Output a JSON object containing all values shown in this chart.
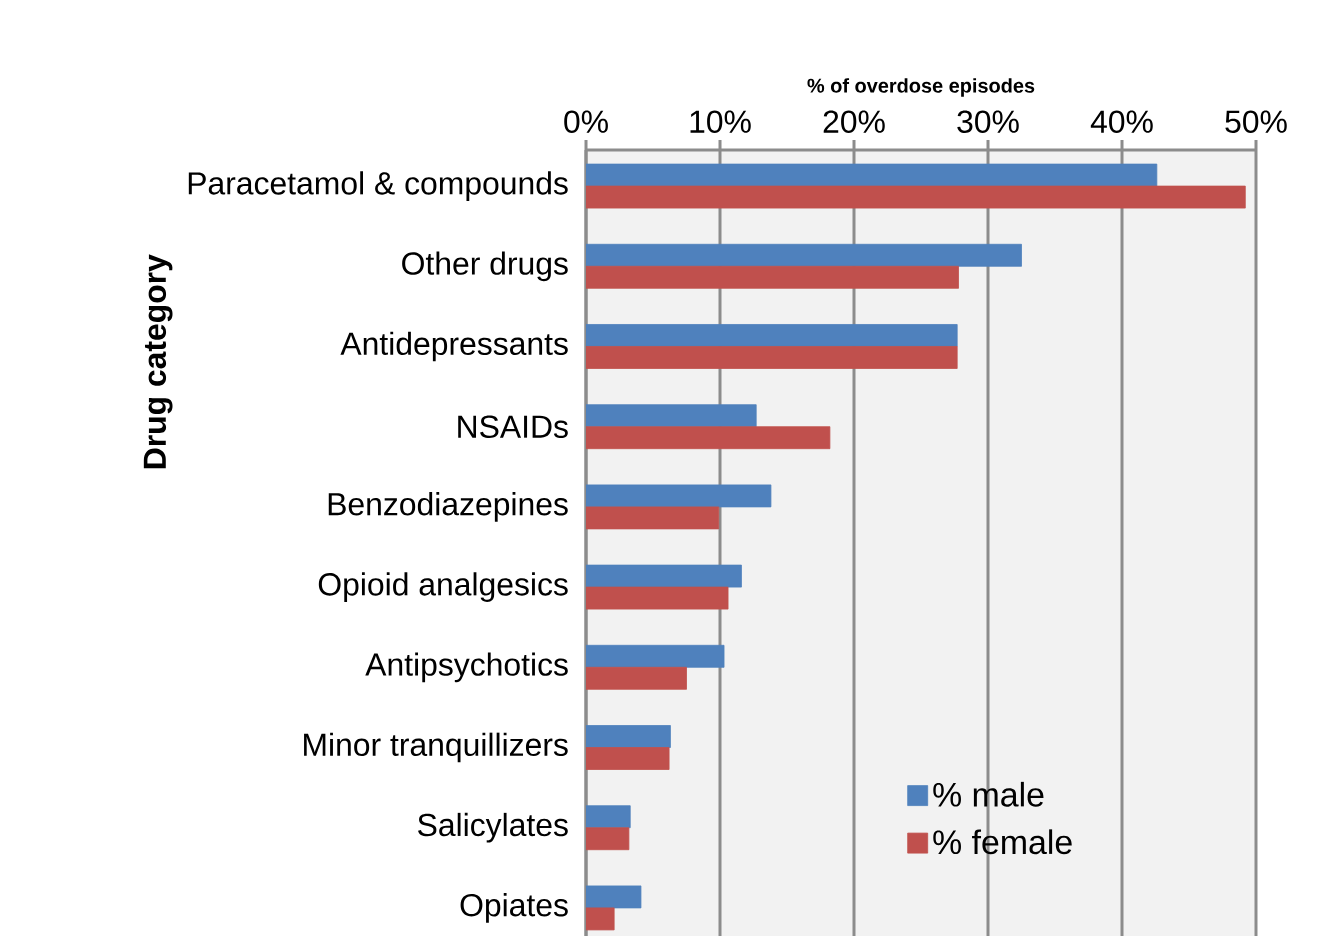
{
  "chart_data": {
    "type": "bar",
    "orientation": "horizontal",
    "xlabel": "% of overdose episodes",
    "ylabel": "Drug category",
    "categories": [
      "Paracetamol & compounds",
      "Other drugs",
      "Antidepressants",
      "NSAIDs",
      "Benzodiazepines",
      "Opioid analgesics",
      "Antipsychotics",
      "Minor tranquillizers",
      "Salicylates",
      "Opiates"
    ],
    "series": [
      {
        "name": "% male",
        "color": "#4f81bd",
        "values": [
          42.6,
          32.5,
          27.7,
          12.7,
          13.8,
          11.6,
          10.3,
          6.3,
          3.3,
          4.1
        ]
      },
      {
        "name": "% female",
        "color": "#c0504d",
        "values": [
          49.2,
          27.8,
          27.7,
          18.2,
          9.9,
          10.6,
          7.5,
          6.2,
          3.2,
          2.1
        ]
      }
    ],
    "xlim": [
      0,
      50
    ],
    "xticks": [
      {
        "value": 0,
        "label": "0%"
      },
      {
        "value": 10,
        "label": "10%"
      },
      {
        "value": 20,
        "label": "20%"
      },
      {
        "value": 30,
        "label": "30%"
      },
      {
        "value": 40,
        "label": "40%"
      },
      {
        "value": 50,
        "label": "50%"
      }
    ],
    "grid": "x",
    "legend": "bottom right"
  }
}
